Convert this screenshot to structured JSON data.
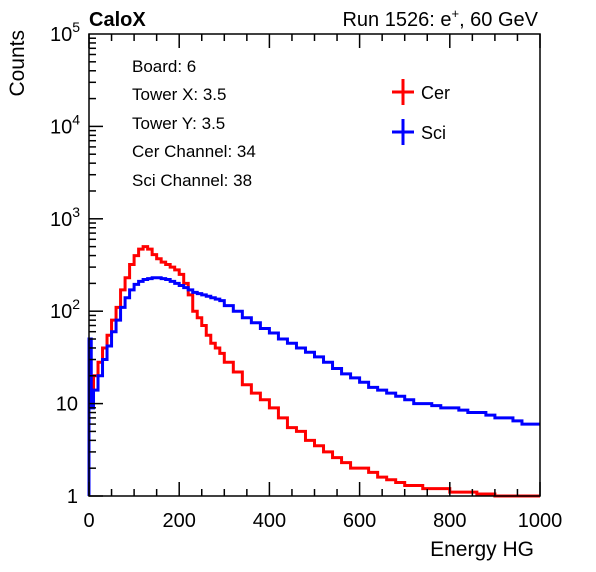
{
  "header": {
    "experiment": "CaloX",
    "run_prefix": "Run 1526: e",
    "run_sup": "+",
    "run_suffix": ", 60 GeV"
  },
  "info": {
    "lines": [
      "Board: 6",
      "Tower X: 3.5",
      "Tower Y: 3.5",
      "Cer Channel: 34",
      "Sci Channel: 38"
    ]
  },
  "chart_data": {
    "type": "line",
    "title": "",
    "xlabel": "Energy HG",
    "ylabel": "Counts",
    "xlim": [
      0,
      1000
    ],
    "ylim": [
      1,
      100000
    ],
    "yscale": "log",
    "grid": false,
    "legend_position": "top-right",
    "x_ticks": [
      0,
      200,
      400,
      600,
      800,
      1000
    ],
    "y_ticks": [
      {
        "base": "1",
        "exp": ""
      },
      {
        "base": "10",
        "exp": ""
      },
      {
        "base": "10",
        "exp": "2"
      },
      {
        "base": "10",
        "exp": "3"
      },
      {
        "base": "10",
        "exp": "4"
      },
      {
        "base": "10",
        "exp": "5"
      }
    ],
    "series": [
      {
        "name": "Cer",
        "color": "#ff0000",
        "x": [
          5,
          10,
          20,
          30,
          40,
          50,
          60,
          70,
          80,
          90,
          100,
          110,
          120,
          130,
          140,
          150,
          160,
          170,
          180,
          190,
          200,
          210,
          220,
          230,
          240,
          250,
          260,
          270,
          280,
          290,
          300,
          320,
          340,
          360,
          380,
          400,
          420,
          440,
          460,
          480,
          500,
          520,
          540,
          560,
          580,
          600,
          620,
          640,
          660,
          680,
          700,
          720,
          740,
          760,
          780,
          800,
          820,
          840,
          860,
          880,
          900,
          920,
          940,
          960,
          980,
          1000
        ],
        "y": [
          20,
          12,
          20,
          28,
          40,
          55,
          80,
          110,
          170,
          230,
          320,
          400,
          470,
          500,
          470,
          410,
          370,
          340,
          320,
          300,
          280,
          250,
          200,
          150,
          100,
          85,
          70,
          55,
          45,
          40,
          35,
          28,
          22,
          16,
          13,
          11,
          9,
          7,
          5.5,
          5,
          4,
          3.5,
          3,
          2.6,
          2.3,
          2,
          2,
          1.8,
          1.6,
          1.5,
          1.4,
          1.3,
          1.3,
          1.2,
          1.2,
          1.2,
          1.1,
          1.1,
          1.1,
          1.05,
          1.05,
          1,
          1,
          1,
          1,
          1
        ]
      },
      {
        "name": "Sci",
        "color": "#0000ff",
        "x": [
          5,
          10,
          20,
          30,
          40,
          50,
          60,
          70,
          80,
          90,
          100,
          110,
          120,
          130,
          140,
          150,
          160,
          170,
          180,
          190,
          200,
          210,
          220,
          230,
          240,
          250,
          260,
          270,
          280,
          290,
          300,
          320,
          340,
          360,
          380,
          400,
          420,
          440,
          460,
          480,
          500,
          520,
          540,
          560,
          580,
          600,
          620,
          640,
          660,
          680,
          700,
          720,
          740,
          760,
          780,
          800,
          820,
          840,
          860,
          880,
          900,
          920,
          940,
          960,
          980,
          1000
        ],
        "y": [
          50,
          9,
          14,
          20,
          30,
          42,
          60,
          80,
          110,
          140,
          170,
          195,
          210,
          220,
          225,
          230,
          230,
          225,
          220,
          210,
          200,
          190,
          180,
          170,
          160,
          155,
          150,
          145,
          140,
          135,
          130,
          115,
          100,
          85,
          75,
          65,
          58,
          50,
          45,
          40,
          36,
          32,
          28,
          24,
          21,
          19,
          17,
          15,
          14,
          13,
          12,
          11,
          10,
          10,
          9.5,
          9,
          9,
          8.5,
          8,
          8,
          7.5,
          7,
          7,
          6.5,
          6,
          6
        ]
      }
    ]
  }
}
